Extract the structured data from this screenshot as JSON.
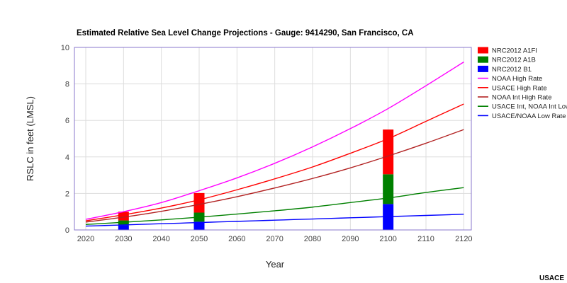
{
  "chart_data": {
    "type": "line",
    "title": "Estimated Relative Sea Level Change Projections - Gauge: 9414290, San Francisco, CA",
    "xlabel": "Year",
    "ylabel": "RSLC in feet (LMSL)",
    "xlim": [
      2017,
      2122
    ],
    "ylim": [
      0,
      10
    ],
    "x_ticks": [
      "2020",
      "2030",
      "2040",
      "2050",
      "2060",
      "2070",
      "2080",
      "2090",
      "2100",
      "2110",
      "2120"
    ],
    "y_ticks": [
      "0",
      "2",
      "4",
      "6",
      "8",
      "10"
    ],
    "grid": true,
    "legend_position": "right",
    "credit": "USACE",
    "series": [
      {
        "name": "NOAA High Rate",
        "color": "#ff00ff",
        "x": [
          2020,
          2030,
          2040,
          2050,
          2060,
          2070,
          2080,
          2090,
          2100,
          2110,
          2120
        ],
        "values": [
          0.58,
          1.0,
          1.5,
          2.15,
          2.85,
          3.65,
          4.55,
          5.55,
          6.65,
          7.9,
          9.2
        ]
      },
      {
        "name": "USACE High Rate",
        "color": "#ff0000",
        "x": [
          2020,
          2030,
          2040,
          2050,
          2060,
          2070,
          2080,
          2090,
          2100,
          2110,
          2120
        ],
        "values": [
          0.5,
          0.83,
          1.2,
          1.65,
          2.2,
          2.8,
          3.45,
          4.2,
          5.0,
          5.95,
          6.9
        ]
      },
      {
        "name": "NOAA Int High Rate",
        "color": "#b22222",
        "x": [
          2020,
          2030,
          2040,
          2050,
          2060,
          2070,
          2080,
          2090,
          2100,
          2110,
          2120
        ],
        "values": [
          0.43,
          0.7,
          1.02,
          1.4,
          1.82,
          2.3,
          2.82,
          3.4,
          4.05,
          4.75,
          5.5
        ]
      },
      {
        "name": "USACE Int, NOAA Int Low",
        "color": "#008000",
        "x": [
          2020,
          2030,
          2040,
          2050,
          2060,
          2070,
          2080,
          2090,
          2100,
          2110,
          2120
        ],
        "values": [
          0.3,
          0.42,
          0.55,
          0.7,
          0.87,
          1.05,
          1.25,
          1.5,
          1.75,
          2.05,
          2.32
        ]
      },
      {
        "name": "USACE/NOAA Low Rate",
        "color": "#0000ff",
        "x": [
          2020,
          2120
        ],
        "values": [
          0.21,
          0.86
        ]
      }
    ],
    "stacked_bars": {
      "x": [
        2030,
        2050,
        2100
      ],
      "series": [
        {
          "name": "NRC2012 B1",
          "color": "#0000ff",
          "values": [
            0.25,
            0.45,
            1.42
          ]
        },
        {
          "name": "NRC2012 A1B",
          "color": "#008000",
          "values": [
            0.27,
            0.5,
            1.63
          ]
        },
        {
          "name": "NRC2012 A1FI",
          "color": "#ff0000",
          "values": [
            0.48,
            1.07,
            2.45
          ]
        }
      ]
    },
    "legend": [
      {
        "label": "NRC2012 A1FI",
        "kind": "box",
        "color": "#ff0000"
      },
      {
        "label": "NRC2012 A1B",
        "kind": "box",
        "color": "#008000"
      },
      {
        "label": "NRC2012 B1",
        "kind": "box",
        "color": "#0000ff"
      },
      {
        "label": "NOAA High Rate",
        "kind": "line",
        "color": "#ff00ff"
      },
      {
        "label": "USACE High Rate",
        "kind": "line",
        "color": "#ff0000"
      },
      {
        "label": "NOAA Int High Rate",
        "kind": "line",
        "color": "#b22222"
      },
      {
        "label": "USACE Int, NOAA Int Low",
        "kind": "line",
        "color": "#008000"
      },
      {
        "label": "USACE/NOAA Low Rate",
        "kind": "line",
        "color": "#0000ff"
      }
    ]
  }
}
